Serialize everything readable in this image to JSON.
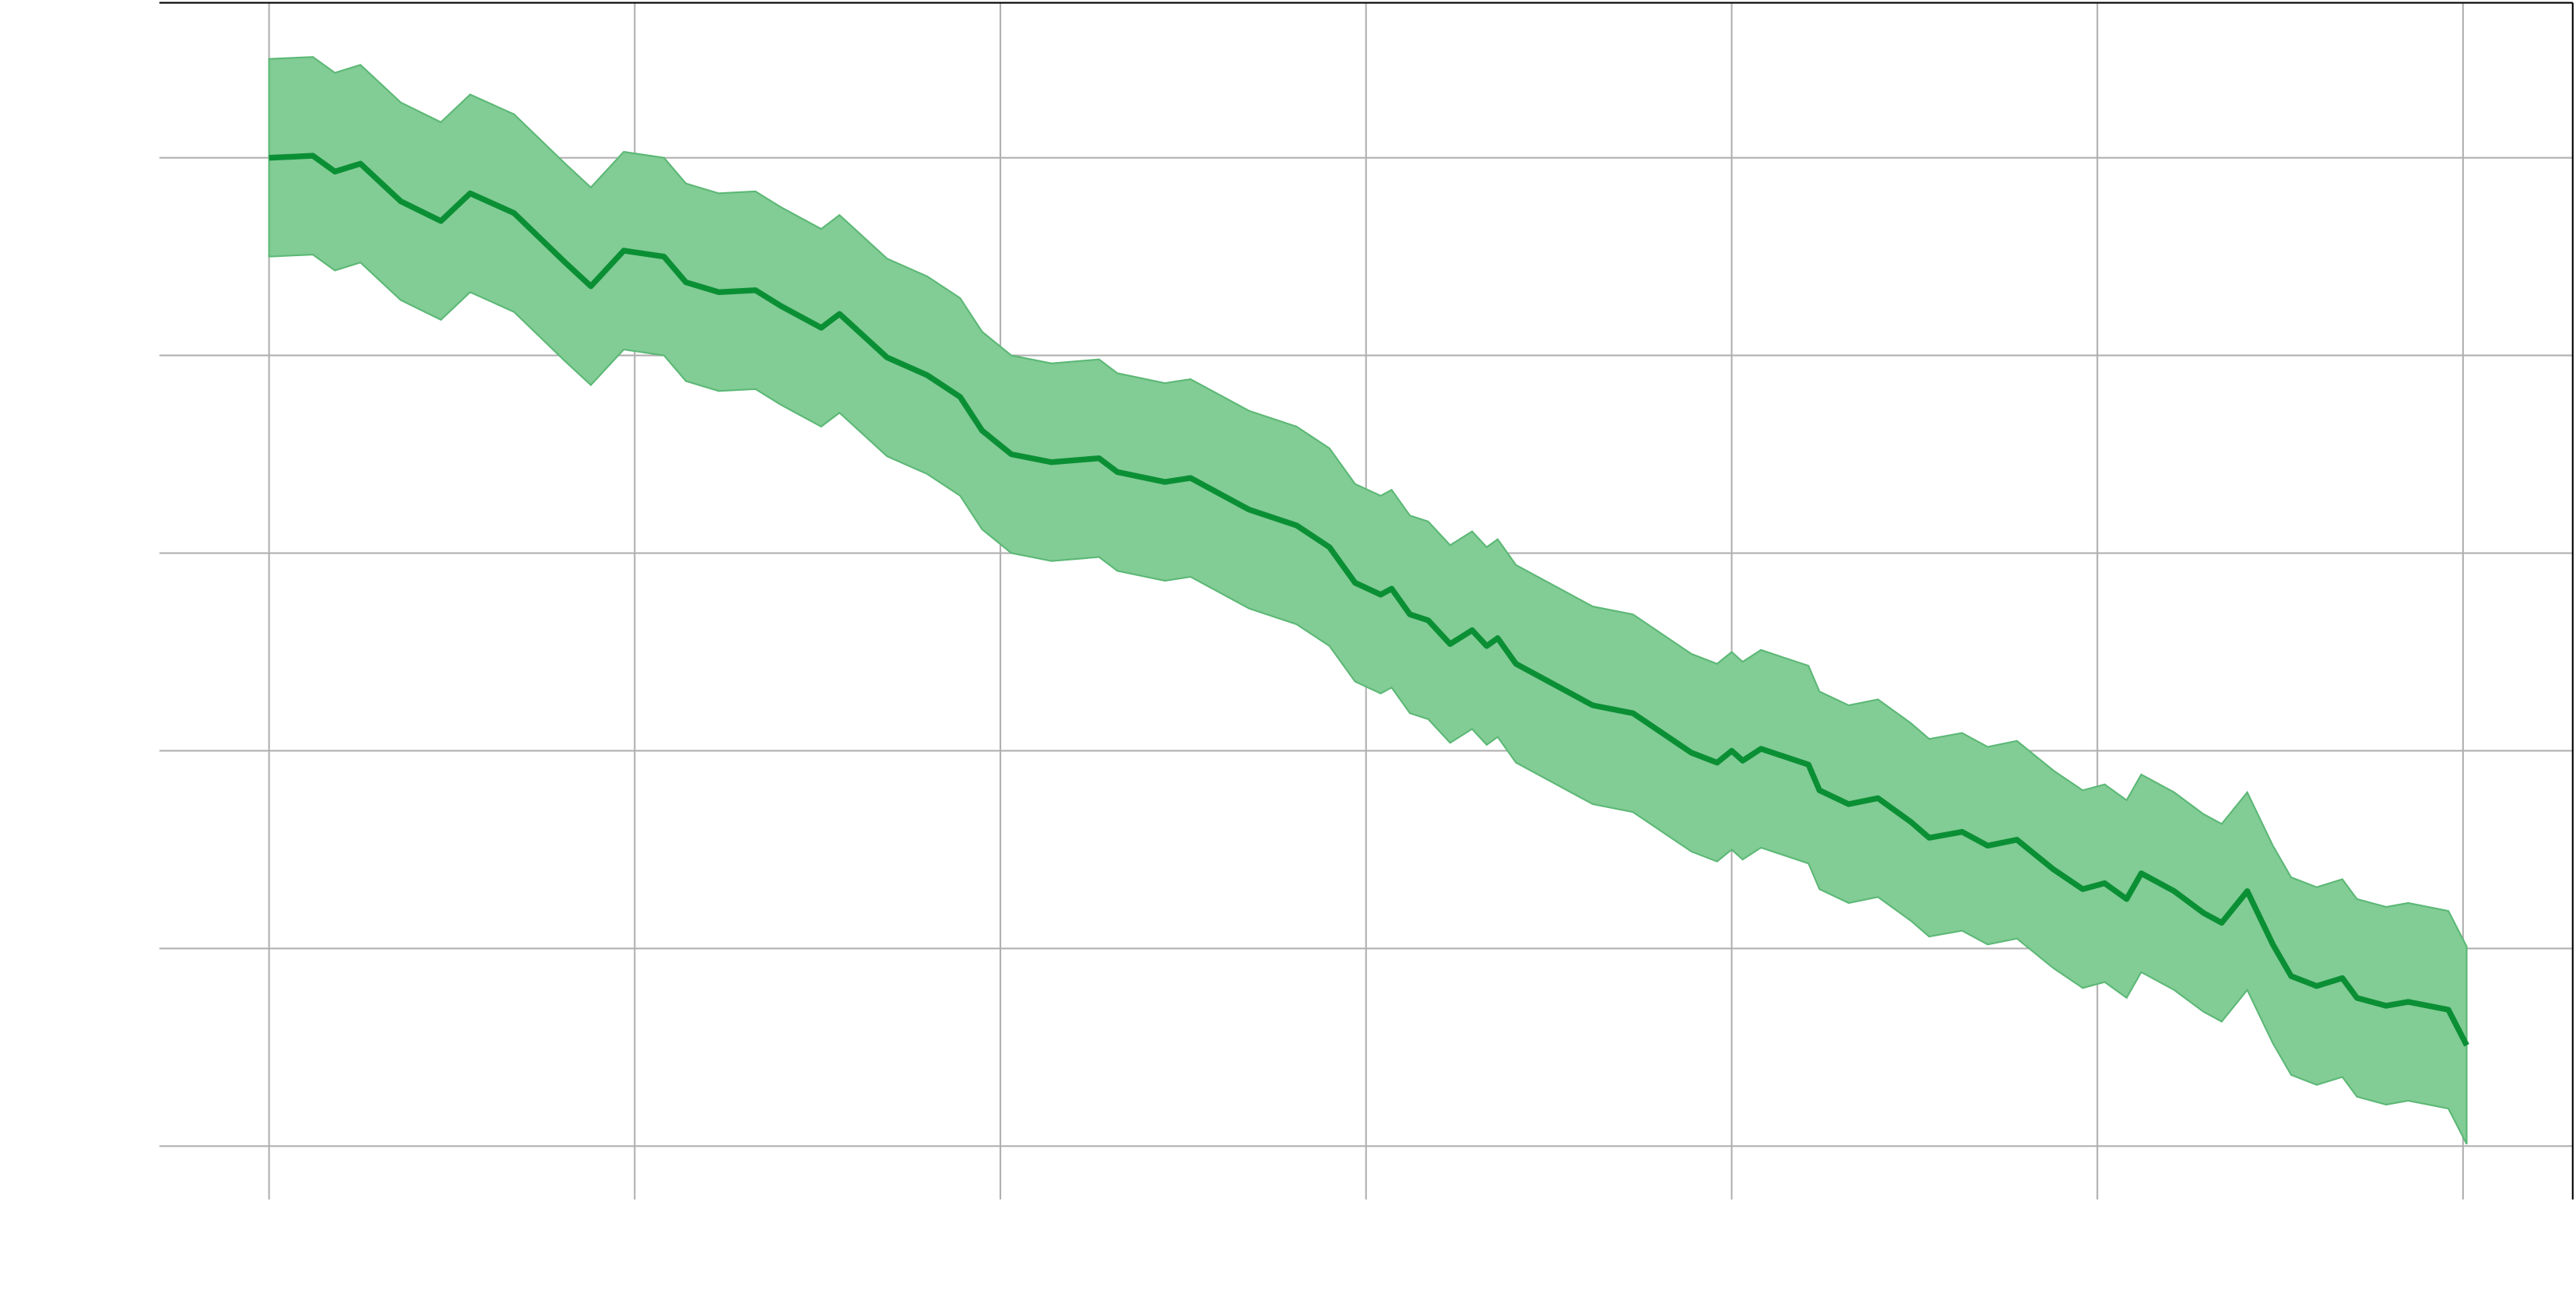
{
  "chart_data": {
    "type": "line",
    "x": [
      0,
      0.12,
      0.18,
      0.25,
      0.36,
      0.47,
      0.55,
      0.67,
      0.81,
      0.88,
      0.97,
      1.08,
      1.14,
      1.23,
      1.33,
      1.4,
      1.51,
      1.56,
      1.69,
      1.8,
      1.89,
      1.95,
      2.03,
      2.14,
      2.27,
      2.32,
      2.45,
      2.52,
      2.68,
      2.81,
      2.9,
      2.97,
      3.04,
      3.07,
      3.12,
      3.17,
      3.23,
      3.29,
      3.33,
      3.36,
      3.41,
      3.51,
      3.62,
      3.73,
      3.89,
      3.96,
      4.0,
      4.03,
      4.08,
      4.21,
      4.24,
      4.32,
      4.4,
      4.49,
      4.54,
      4.63,
      4.7,
      4.78,
      4.88,
      4.96,
      5.02,
      5.08,
      5.12,
      5.21,
      5.29,
      5.34,
      5.41,
      5.48,
      5.53,
      5.6,
      5.67,
      5.71,
      5.79,
      5.85,
      5.96,
      6.01
    ],
    "series": [
      {
        "color": "#0b8f35",
        "values": [
          5.0,
          5.01,
          4.93,
          4.97,
          4.78,
          4.68,
          4.82,
          4.72,
          4.47,
          4.35,
          4.53,
          4.5,
          4.37,
          4.32,
          4.33,
          4.25,
          4.14,
          4.21,
          3.99,
          3.9,
          3.79,
          3.62,
          3.5,
          3.46,
          3.48,
          3.41,
          3.36,
          3.38,
          3.22,
          3.14,
          3.03,
          2.85,
          2.79,
          2.82,
          2.69,
          2.66,
          2.54,
          2.61,
          2.53,
          2.57,
          2.44,
          2.34,
          2.23,
          2.19,
          1.99,
          1.94,
          2.0,
          1.95,
          2.01,
          1.93,
          1.8,
          1.73,
          1.76,
          1.64,
          1.56,
          1.59,
          1.52,
          1.55,
          1.4,
          1.3,
          1.33,
          1.25,
          1.38,
          1.29,
          1.18,
          1.13,
          1.29,
          1.02,
          0.86,
          0.81,
          0.85,
          0.75,
          0.71,
          0.73,
          0.69,
          0.51
        ]
      }
    ],
    "band": {
      "color": "#82cc95",
      "upper": [
        5.5,
        5.51,
        5.43,
        5.47,
        5.28,
        5.18,
        5.32,
        5.22,
        4.97,
        4.85,
        5.03,
        5.0,
        4.87,
        4.82,
        4.83,
        4.75,
        4.64,
        4.71,
        4.49,
        4.4,
        4.29,
        4.12,
        4.0,
        3.96,
        3.98,
        3.91,
        3.86,
        3.88,
        3.72,
        3.64,
        3.53,
        3.35,
        3.29,
        3.32,
        3.19,
        3.16,
        3.04,
        3.11,
        3.03,
        3.07,
        2.94,
        2.84,
        2.73,
        2.69,
        2.49,
        2.44,
        2.5,
        2.45,
        2.51,
        2.43,
        2.3,
        2.23,
        2.26,
        2.14,
        2.06,
        2.09,
        2.02,
        2.05,
        1.9,
        1.8,
        1.83,
        1.75,
        1.88,
        1.79,
        1.68,
        1.63,
        1.79,
        1.52,
        1.36,
        1.31,
        1.35,
        1.25,
        1.21,
        1.23,
        1.19,
        1.01
      ],
      "lower": [
        4.5,
        4.51,
        4.43,
        4.47,
        4.28,
        4.18,
        4.32,
        4.22,
        3.97,
        3.85,
        4.03,
        4.0,
        3.87,
        3.82,
        3.83,
        3.75,
        3.64,
        3.71,
        3.49,
        3.4,
        3.29,
        3.12,
        3.0,
        2.96,
        2.98,
        2.91,
        2.86,
        2.88,
        2.72,
        2.64,
        2.53,
        2.35,
        2.29,
        2.32,
        2.19,
        2.16,
        2.04,
        2.11,
        2.03,
        2.07,
        1.94,
        1.84,
        1.73,
        1.69,
        1.49,
        1.44,
        1.5,
        1.45,
        1.51,
        1.43,
        1.3,
        1.23,
        1.26,
        1.14,
        1.06,
        1.09,
        1.02,
        1.05,
        0.9,
        0.8,
        0.83,
        0.75,
        0.88,
        0.79,
        0.68,
        0.63,
        0.79,
        0.52,
        0.36,
        0.31,
        0.35,
        0.25,
        0.21,
        0.23,
        0.19,
        0.01
      ]
    },
    "xlim": [
      -0.3,
      6.3
    ],
    "ylim": [
      -0.27,
      5.78
    ],
    "xticks": [
      0,
      1,
      2,
      3,
      4,
      5,
      6
    ],
    "yticks": [
      0,
      1,
      2,
      3,
      4,
      5
    ],
    "grid": true
  }
}
